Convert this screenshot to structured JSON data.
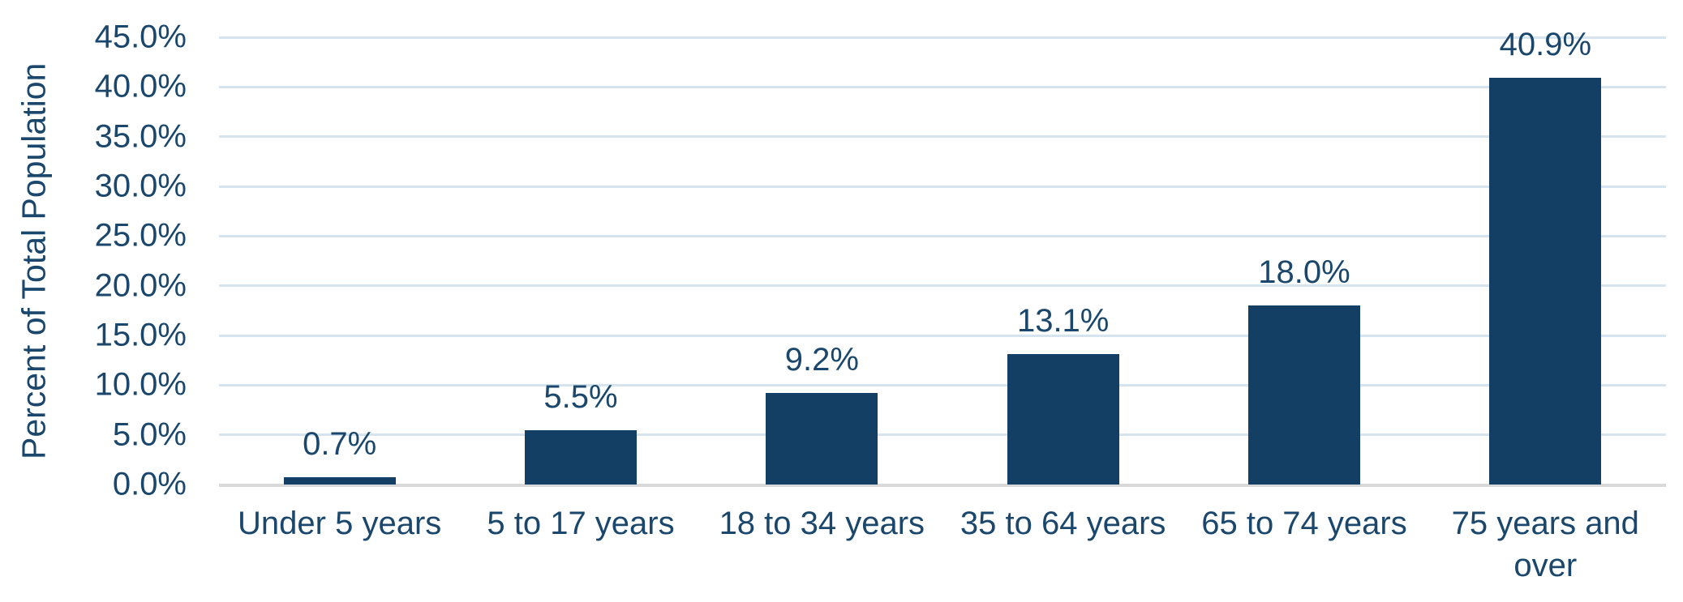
{
  "chart_data": {
    "type": "bar",
    "ylabel": "Percent of Total Population",
    "xlabel": "",
    "categories": [
      "Under 5 years",
      "5 to 17 years",
      "18 to 34 years",
      "35 to 64 years",
      "65 to 74 years",
      "75 years and over"
    ],
    "values": [
      0.7,
      5.5,
      9.2,
      13.1,
      18.0,
      40.9
    ],
    "data_labels": [
      "0.7%",
      "5.5%",
      "9.2%",
      "13.1%",
      "18.0%",
      "40.9%"
    ],
    "y_ticks": [
      "0.0%",
      "5.0%",
      "10.0%",
      "15.0%",
      "20.0%",
      "25.0%",
      "30.0%",
      "35.0%",
      "40.0%",
      "45.0%"
    ],
    "ylim": [
      0,
      45
    ],
    "y_tick_step": 5,
    "grid": "horizontal",
    "legend": "none"
  },
  "colors": {
    "background": "#ffffff",
    "bar": "#123f63",
    "text": "#1a476b",
    "gridline": "#d6e4f0",
    "baseline": "#d9d9d9"
  }
}
